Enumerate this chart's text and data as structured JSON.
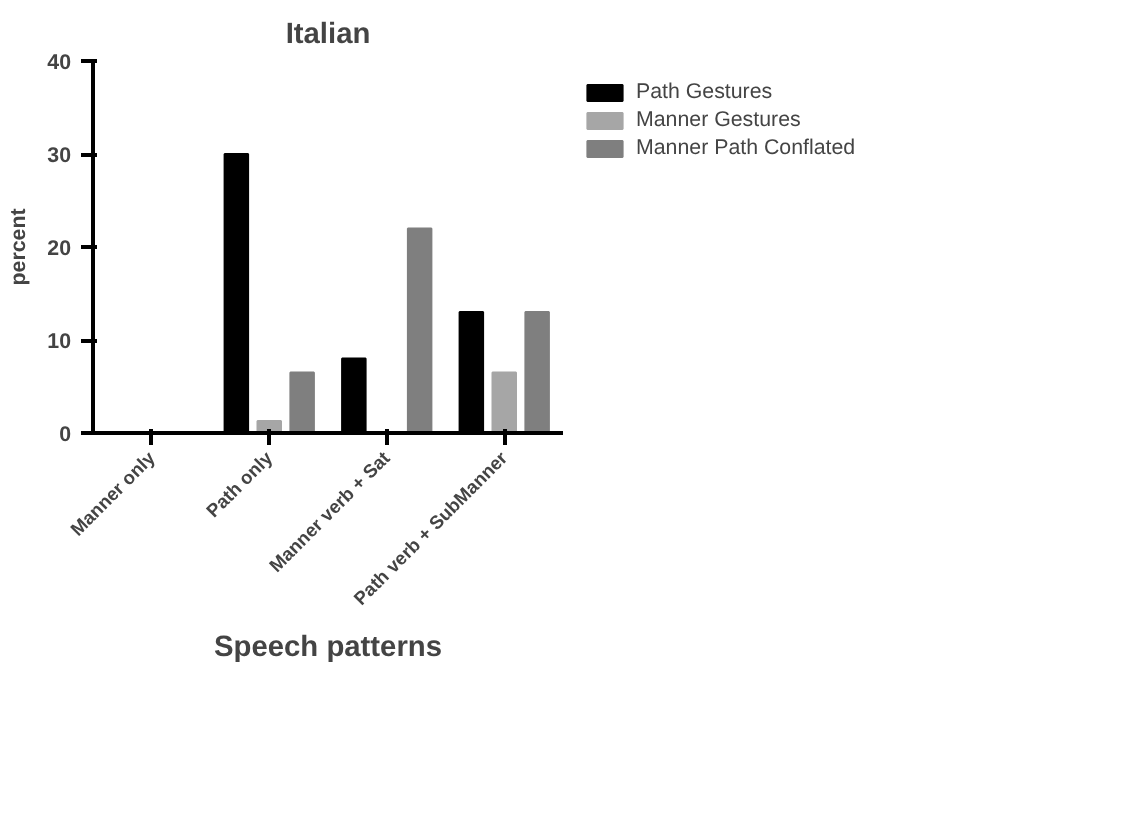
{
  "chart_data": {
    "type": "bar",
    "title": "Italian",
    "xlabel": "Speech patterns",
    "ylabel": "percent",
    "categories": [
      "Manner only",
      "Path only",
      "Manner verb + Sat",
      "Path verb + SubManner"
    ],
    "series": [
      {
        "name": "Path Gestures",
        "color": "#000000",
        "values": [
          0,
          30,
          8,
          13
        ]
      },
      {
        "name": "Manner Gestures",
        "color": "#a6a6a6",
        "values": [
          0,
          1.3,
          0,
          6.5
        ]
      },
      {
        "name": "Manner Path Conflated",
        "color": "#7f7f7f",
        "values": [
          0,
          6.5,
          22,
          13
        ]
      }
    ],
    "ylim": [
      0,
      40
    ],
    "yticks": [
      0,
      10,
      20,
      30,
      40
    ],
    "grid": false,
    "legend": "right"
  }
}
